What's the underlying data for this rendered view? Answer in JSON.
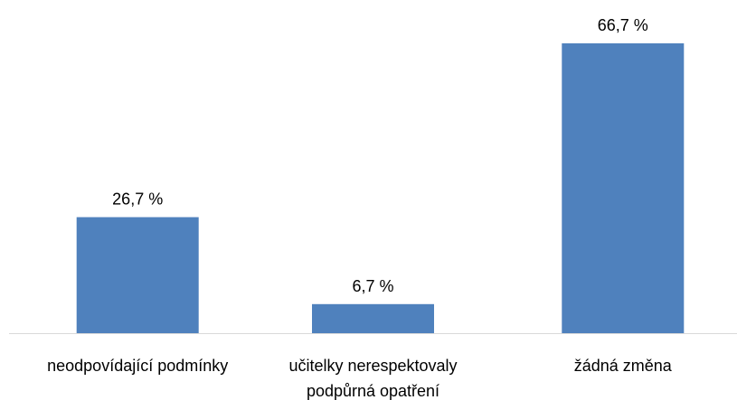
{
  "chart_data": {
    "type": "bar",
    "categories": [
      [
        "neodpovídající podmínky"
      ],
      [
        "učitelky nerespektovaly",
        "podpůrná opatření"
      ],
      [
        "žádná změna"
      ]
    ],
    "values": [
      26.7,
      6.7,
      66.7
    ],
    "data_labels": [
      "26,7 %",
      "6,7 %",
      "66,7 %"
    ],
    "title": "",
    "xlabel": "",
    "ylabel": "",
    "ylim": [
      0,
      70
    ],
    "grid": false,
    "legend": "none",
    "colors": {
      "bar": "#4f81bd",
      "axis": "#d9d9d9",
      "text": "#000000"
    }
  }
}
